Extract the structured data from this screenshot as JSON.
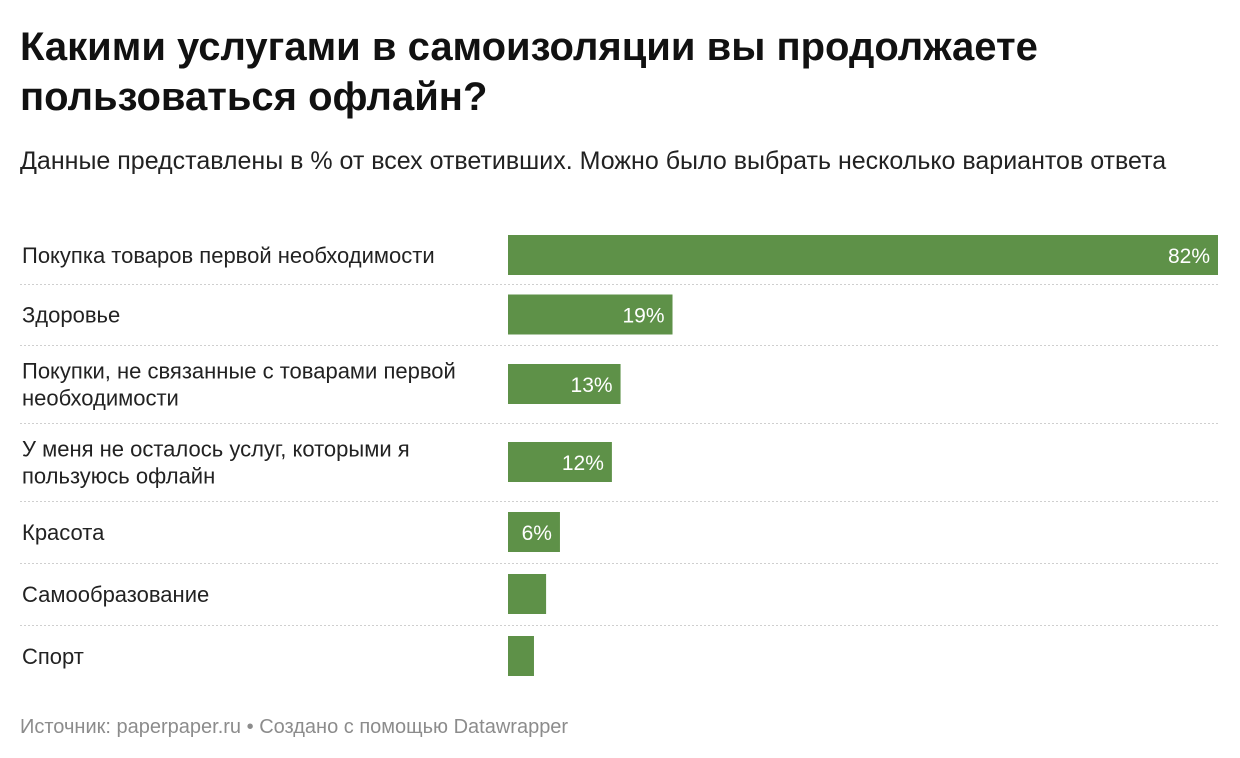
{
  "header": {
    "title": "Какими услугами в самоизоляции вы продолжаете пользоваться офлайн?",
    "subtitle": "Данные представлены в % от всех ответивших. Можно было выбрать несколько вариантов ответа"
  },
  "footer": {
    "source_label": "Источник:",
    "source": "paperpaper.ru",
    "separator": "•",
    "created_with": "Создано с помощью Datawrapper"
  },
  "colors": {
    "bar": "#5e9148"
  },
  "chart_data": {
    "type": "bar",
    "orientation": "horizontal",
    "title": "Какими услугами в самоизоляции вы продолжаете пользоваться офлайн?",
    "xlim": [
      0,
      82
    ],
    "categories": [
      [
        "Покупка товаров первой необходимости"
      ],
      [
        "Здоровье"
      ],
      [
        "Покупки, не связанные с товарами первой",
        "необходимости"
      ],
      [
        "У меня не осталось услуг, которыми я",
        "пользуюсь офлайн"
      ],
      [
        "Красота"
      ],
      [
        "Самообразование"
      ],
      [
        "Спорт"
      ]
    ],
    "values": [
      82,
      19,
      13,
      12,
      6,
      4.4,
      3
    ],
    "value_labels": [
      "82%",
      "19%",
      "13%",
      "12%",
      "6%",
      "",
      ""
    ]
  }
}
